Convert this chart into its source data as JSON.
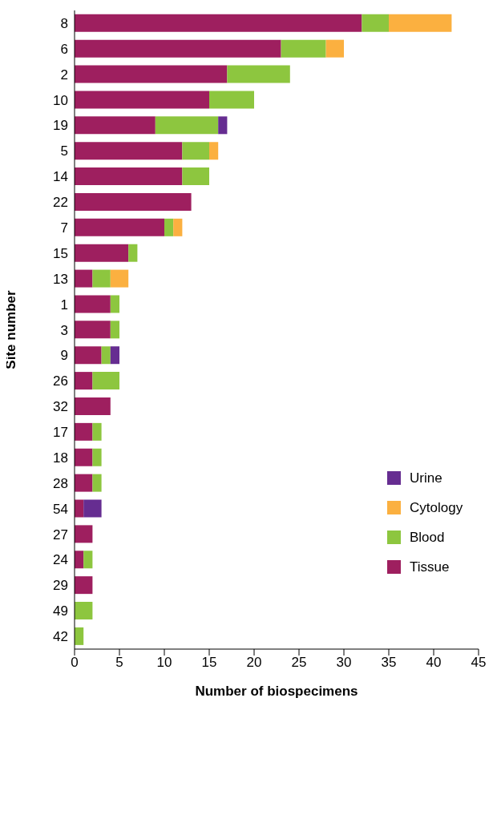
{
  "chart_data": {
    "type": "bar",
    "orientation": "horizontal",
    "stacked": true,
    "xlabel": "Number of biospecimens",
    "ylabel": "Site number",
    "categories": [
      "8",
      "6",
      "2",
      "10",
      "19",
      "5",
      "14",
      "22",
      "7",
      "15",
      "13",
      "1",
      "3",
      "9",
      "26",
      "32",
      "17",
      "18",
      "28",
      "54",
      "27",
      "24",
      "29",
      "49",
      "42"
    ],
    "series": [
      {
        "name": "Tissue",
        "color": "#9e1f5f",
        "values": [
          32,
          23,
          17,
          15,
          9,
          12,
          12,
          13,
          10,
          6,
          2,
          4,
          4,
          3,
          2,
          4,
          2,
          2,
          2,
          1,
          2,
          1,
          2,
          null,
          null
        ]
      },
      {
        "name": "Blood",
        "color": "#8dc63f",
        "values": [
          3,
          5,
          7,
          5,
          7,
          3,
          3,
          null,
          1,
          1,
          2,
          1,
          1,
          1,
          3,
          null,
          1,
          1,
          1,
          null,
          null,
          1,
          null,
          2,
          1
        ]
      },
      {
        "name": "Cytology",
        "color": "#fbb040",
        "values": [
          7,
          2,
          null,
          null,
          null,
          1,
          null,
          null,
          1,
          null,
          2,
          null,
          null,
          null,
          null,
          null,
          null,
          null,
          null,
          null,
          null,
          null,
          null,
          null,
          null
        ]
      },
      {
        "name": "Urine",
        "color": "#662d91",
        "values": [
          null,
          null,
          null,
          null,
          1,
          null,
          null,
          null,
          null,
          null,
          null,
          null,
          null,
          1,
          null,
          null,
          null,
          null,
          null,
          2,
          null,
          null,
          null,
          null,
          null
        ]
      }
    ],
    "xlim": [
      0,
      45
    ],
    "xticks": [
      0,
      5,
      10,
      15,
      20,
      25,
      30,
      35,
      40,
      45
    ],
    "legend": "right",
    "grid": false
  }
}
